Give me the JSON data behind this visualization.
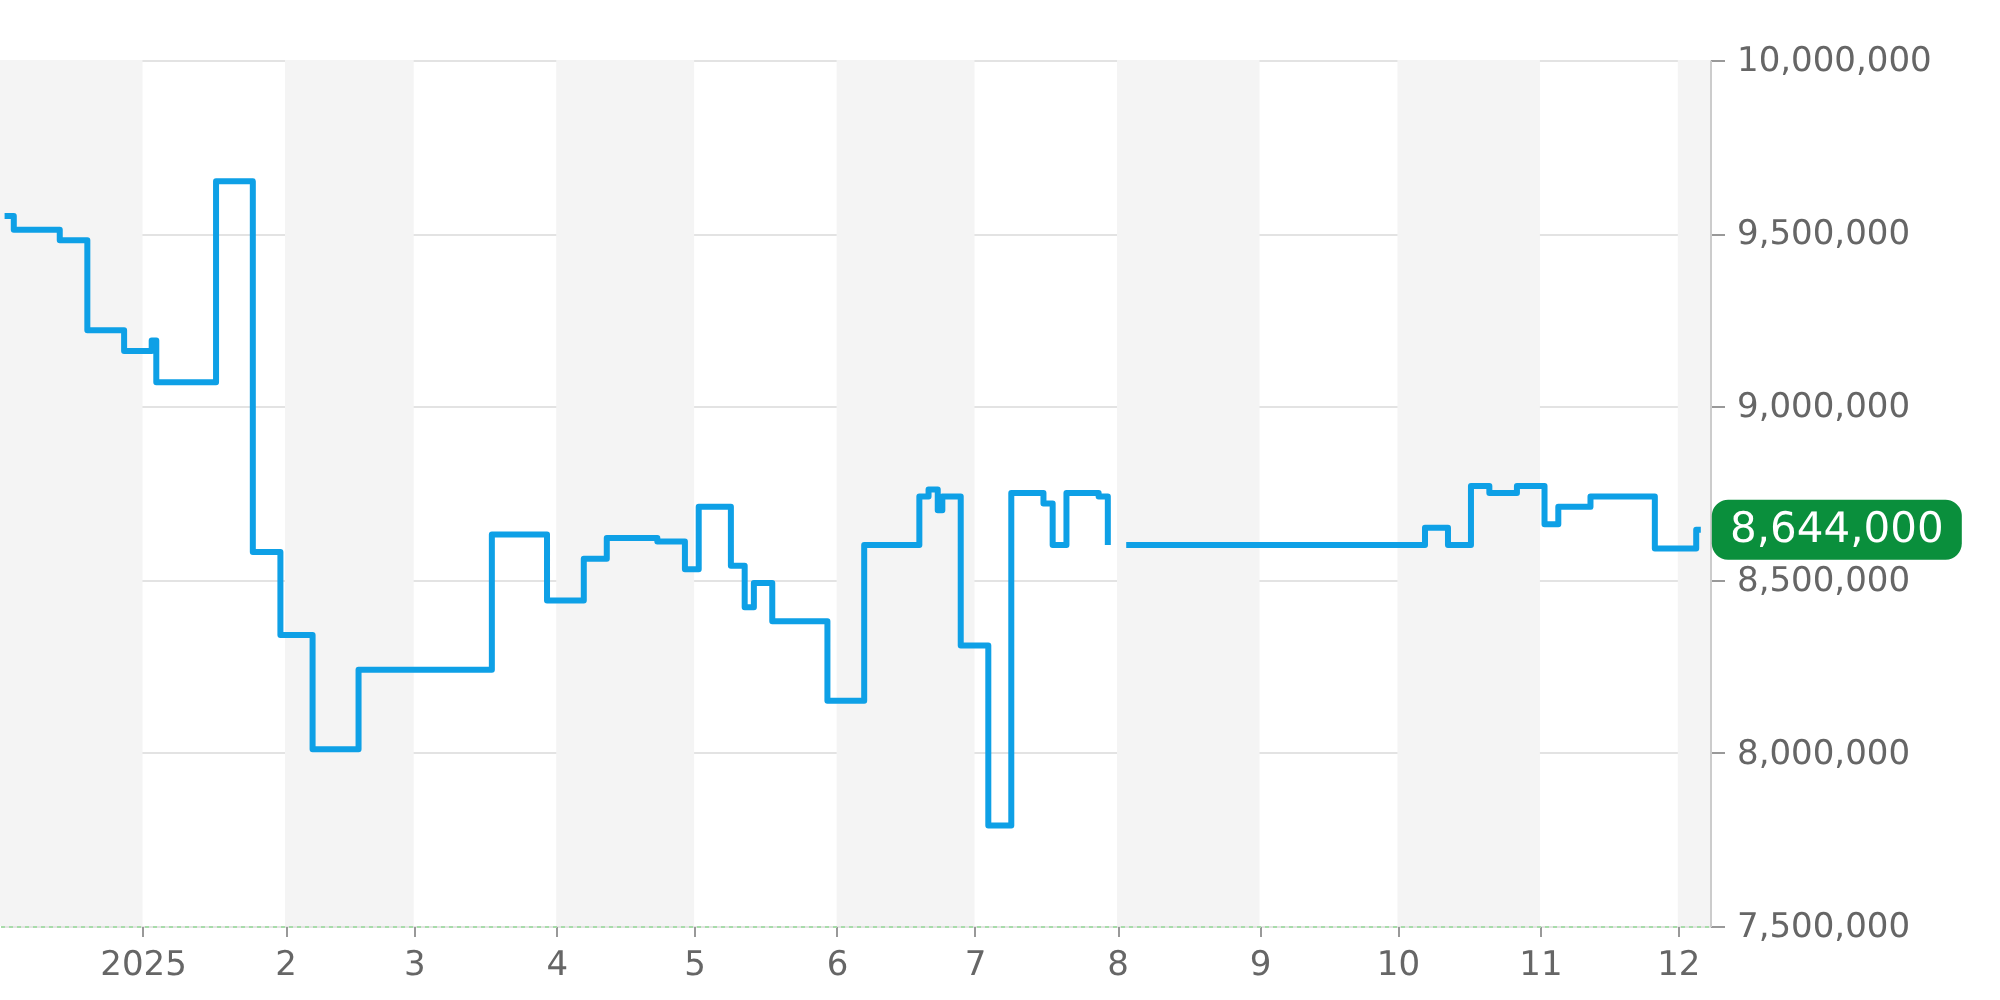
{
  "chart_data": {
    "type": "step",
    "xlim": [
      "2024-12-01",
      "2025-12-08"
    ],
    "xticks": [
      {
        "value": "2025-01-01",
        "label": "2025"
      },
      {
        "value": "2025-02-01",
        "label": "2"
      },
      {
        "value": "2025-03-01",
        "label": "3"
      },
      {
        "value": "2025-04-01",
        "label": "4"
      },
      {
        "value": "2025-05-01",
        "label": "5"
      },
      {
        "value": "2025-06-01",
        "label": "6"
      },
      {
        "value": "2025-07-01",
        "label": "7"
      },
      {
        "value": "2025-08-01",
        "label": "8"
      },
      {
        "value": "2025-09-01",
        "label": "9"
      },
      {
        "value": "2025-10-01",
        "label": "10"
      },
      {
        "value": "2025-11-01",
        "label": "11"
      },
      {
        "value": "2025-12-01",
        "label": "12"
      }
    ],
    "ylim": [
      7500000,
      10000000
    ],
    "yticks": [
      {
        "value": 7500000,
        "label": "7,500,000"
      },
      {
        "value": 8000000,
        "label": "8,000,000"
      },
      {
        "value": 8500000,
        "label": "8,500,000"
      },
      {
        "value": 9000000,
        "label": "9,000,000"
      },
      {
        "value": 9500000,
        "label": "9,500,000"
      },
      {
        "value": 10000000,
        "label": "10,000,000"
      }
    ],
    "grid": "y",
    "bands": [
      {
        "axis": "x",
        "from": "2024-12-01",
        "to": "2025-01-01",
        "color": "#f4f4f4"
      },
      {
        "axis": "x",
        "from": "2025-02-01",
        "to": "2025-03-01",
        "color": "#f4f4f4"
      },
      {
        "axis": "x",
        "from": "2025-04-01",
        "to": "2025-05-01",
        "color": "#f4f4f4"
      },
      {
        "axis": "x",
        "from": "2025-06-01",
        "to": "2025-07-01",
        "color": "#f4f4f4"
      },
      {
        "axis": "x",
        "from": "2025-08-01",
        "to": "2025-09-01",
        "color": "#f4f4f4"
      },
      {
        "axis": "x",
        "from": "2025-10-01",
        "to": "2025-11-01",
        "color": "#f4f4f4"
      },
      {
        "axis": "x",
        "from": "2025-12-01",
        "to": "2025-12-08",
        "color": "#f4f4f4"
      }
    ],
    "annotations": [
      {
        "text": "8,644,000",
        "x": "2025-12-06",
        "y": 8644000
      }
    ],
    "series": [
      {
        "color": "#0ea0e6",
        "x": [
          "2024-12-02",
          "2024-12-04",
          "2024-12-14",
          "2024-12-20",
          "2024-12-28",
          "2025-01-03",
          "2025-01-04",
          "2025-01-17",
          "2025-01-25",
          "2025-01-31",
          "2025-02-07",
          "2025-02-17",
          "2025-03-18",
          "2025-03-30",
          "2025-04-07",
          "2025-04-12",
          "2025-04-23",
          "2025-04-29",
          "2025-05-02",
          "2025-05-09",
          "2025-05-12",
          "2025-05-14",
          "2025-05-18",
          "2025-05-30",
          "2025-06-07",
          "2025-06-19",
          "2025-06-21",
          "2025-06-23",
          "2025-06-24",
          "2025-06-28",
          "2025-07-04",
          "2025-07-09",
          "2025-07-16",
          "2025-07-18",
          "2025-07-21",
          "2025-07-28",
          "2025-07-30",
          "2025-07-31",
          "2025-08-03",
          "2025-10-07",
          "2025-10-12",
          "2025-10-17",
          "2025-10-21",
          "2025-10-27",
          "2025-11-02",
          "2025-11-05",
          "2025-11-12",
          "2025-11-26",
          "2025-12-05",
          "2025-12-06"
        ],
        "values": [
          9550000,
          9510000,
          9480000,
          9220000,
          9160000,
          9190000,
          9070000,
          9650000,
          8580000,
          8340000,
          8010000,
          8240000,
          8630000,
          8440000,
          8560000,
          8620000,
          8610000,
          8530000,
          8710000,
          8540000,
          8420000,
          8490000,
          8380000,
          8150000,
          8600000,
          8740000,
          8760000,
          8700000,
          8740000,
          8310000,
          7790000,
          8750000,
          8720000,
          8600000,
          8750000,
          8740000,
          8600000,
          null,
          8600000,
          8650000,
          8600000,
          8770000,
          8750000,
          8770000,
          8660000,
          8710000,
          8740000,
          8590000,
          8644000,
          8644000
        ]
      }
    ]
  }
}
